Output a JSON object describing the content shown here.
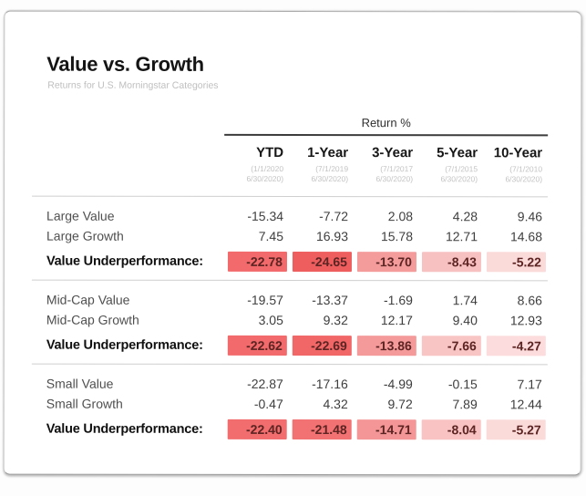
{
  "card": {
    "title": "Value vs. Growth",
    "subtitle": "Returns for U.S. Morningstar Categories"
  },
  "table": {
    "group_header": "Return %",
    "columns": [
      {
        "label": "YTD",
        "date1": "(1/1/2020",
        "date2": "6/30/2020)"
      },
      {
        "label": "1-Year",
        "date1": "(7/1/2019",
        "date2": "6/30/2020)"
      },
      {
        "label": "3-Year",
        "date1": "(7/1/2017",
        "date2": "6/30/2020)"
      },
      {
        "label": "5-Year",
        "date1": "(7/1/2015",
        "date2": "6/30/2020)"
      },
      {
        "label": "10-Year",
        "date1": "(7/1/2010",
        "date2": "6/30/2020)"
      }
    ],
    "sections": [
      {
        "rows": [
          {
            "label": "Large Value",
            "values": [
              "-15.34",
              "-7.72",
              "2.08",
              "4.28",
              "9.46"
            ]
          },
          {
            "label": "Large Growth",
            "values": [
              "7.45",
              "16.93",
              "15.78",
              "12.71",
              "14.68"
            ]
          }
        ],
        "summary": {
          "label": "Value Underperformance:",
          "values": [
            "-22.78",
            "-24.65",
            "-13.70",
            "-8.43",
            "-5.22"
          ],
          "colors": [
            "#f26a6b",
            "#ef5e5f",
            "#f49c9c",
            "#f8c1c1",
            "#fbdada"
          ]
        }
      },
      {
        "rows": [
          {
            "label": "Mid-Cap Value",
            "values": [
              "-19.57",
              "-13.37",
              "-1.69",
              "1.74",
              "8.66"
            ]
          },
          {
            "label": "Mid-Cap Growth",
            "values": [
              "3.05",
              "9.32",
              "12.17",
              "9.40",
              "12.93"
            ]
          }
        ],
        "summary": {
          "label": "Value Underperformance:",
          "values": [
            "-22.62",
            "-22.69",
            "-13.86",
            "-7.66",
            "-4.27"
          ],
          "colors": [
            "#f26a6b",
            "#f16768",
            "#f49a9a",
            "#f9c5c4",
            "#fcdcdc"
          ]
        }
      },
      {
        "rows": [
          {
            "label": "Small Value",
            "values": [
              "-22.87",
              "-17.16",
              "-4.99",
              "-0.15",
              "7.17"
            ]
          },
          {
            "label": "Small Growth",
            "values": [
              "-0.47",
              "4.32",
              "9.72",
              "7.89",
              "12.44"
            ]
          }
        ],
        "summary": {
          "label": "Value Underperformance:",
          "values": [
            "-22.40",
            "-21.48",
            "-14.71",
            "-8.04",
            "-5.27"
          ],
          "colors": [
            "#f26d6e",
            "#f27172",
            "#f49697",
            "#f8c3c2",
            "#fbdada"
          ]
        }
      }
    ]
  },
  "colors": {
    "rule_light": "#cfcfcf",
    "rule_dark": "#3c3c3c",
    "summary_text": "#5c2422",
    "heat_strongest": "#ef5e5f",
    "heat_lightest": "#fcdcdc"
  },
  "chart_data": {
    "type": "table",
    "title": "Value vs. Growth",
    "subtitle": "Returns for U.S. Morningstar Categories",
    "unit": "Return %",
    "columns": [
      "YTD (1/1/2020-6/30/2020)",
      "1-Year (7/1/2019-6/30/2020)",
      "3-Year (7/1/2017-6/30/2020)",
      "5-Year (7/1/2015-6/30/2020)",
      "10-Year (7/1/2010-6/30/2020)"
    ],
    "rows": [
      {
        "label": "Large Value",
        "values": [
          -15.34,
          -7.72,
          2.08,
          4.28,
          9.46
        ]
      },
      {
        "label": "Large Growth",
        "values": [
          7.45,
          16.93,
          15.78,
          12.71,
          14.68
        ]
      },
      {
        "label": "Value Underperformance (Large)",
        "values": [
          -22.78,
          -24.65,
          -13.7,
          -8.43,
          -5.22
        ]
      },
      {
        "label": "Mid-Cap Value",
        "values": [
          -19.57,
          -13.37,
          -1.69,
          1.74,
          8.66
        ]
      },
      {
        "label": "Mid-Cap Growth",
        "values": [
          3.05,
          9.32,
          12.17,
          9.4,
          12.93
        ]
      },
      {
        "label": "Value Underperformance (Mid-Cap)",
        "values": [
          -22.62,
          -22.69,
          -13.86,
          -7.66,
          -4.27
        ]
      },
      {
        "label": "Small Value",
        "values": [
          -22.87,
          -17.16,
          -4.99,
          -0.15,
          7.17
        ]
      },
      {
        "label": "Small Growth",
        "values": [
          -0.47,
          4.32,
          9.72,
          7.89,
          12.44
        ]
      },
      {
        "label": "Value Underperformance (Small)",
        "values": [
          -22.4,
          -21.48,
          -14.71,
          -8.04,
          -5.27
        ]
      }
    ],
    "layout_hints": "Underperformance rows shaded red; darker red = larger negative value"
  }
}
